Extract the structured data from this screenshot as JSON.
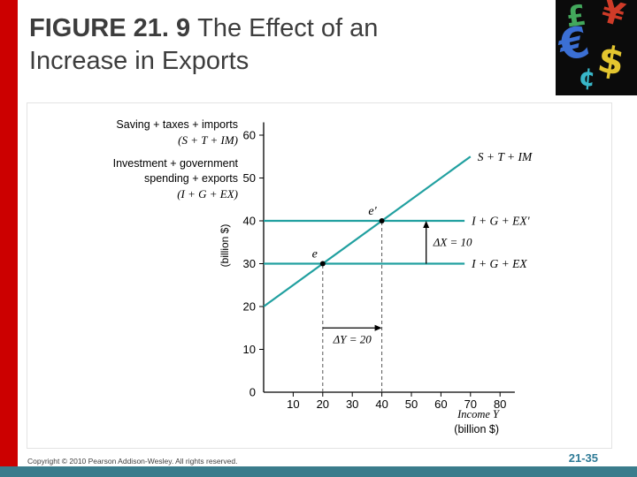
{
  "header": {
    "figure_label": "FIGURE 21. 9",
    "title_line1": "The Effect of an",
    "title_line2": "Increase in Exports"
  },
  "collage": {
    "glyphs": [
      "€",
      "$",
      "¥",
      "£",
      "¢"
    ]
  },
  "figure": {
    "y_axis_caption": [
      "Saving + taxes + imports",
      "(S + T + IM)",
      "Investment + government",
      "spending + exports",
      "(I + G + EX)"
    ],
    "x_axis_label_line1": "Income Y",
    "x_axis_label_line2": "(billion $)"
  },
  "chart_data": {
    "type": "line",
    "title": "",
    "xlabel": "Income Y (billion $)",
    "ylabel": "(billion $)",
    "xlim": [
      0,
      85
    ],
    "ylim": [
      0,
      63
    ],
    "x_ticks": [
      10,
      20,
      30,
      40,
      50,
      60,
      70,
      80
    ],
    "y_ticks": [
      0,
      10,
      20,
      30,
      40,
      50,
      60
    ],
    "grid": false,
    "series": [
      {
        "name": "S + T + IM",
        "x": [
          0,
          70
        ],
        "y": [
          20,
          55
        ],
        "color": "#21a0a0"
      },
      {
        "name": "I + G + EX'",
        "x": [
          0,
          68
        ],
        "y": [
          40,
          40
        ],
        "color": "#21a0a0"
      },
      {
        "name": "I + G + EX",
        "x": [
          0,
          68
        ],
        "y": [
          30,
          30
        ],
        "color": "#21a0a0"
      }
    ],
    "points": [
      {
        "label": "e",
        "x": 20,
        "y": 30
      },
      {
        "label": "e'",
        "x": 40,
        "y": 40
      }
    ],
    "dashed_guides": [
      {
        "x": 20,
        "y_from": 0,
        "y_to": 30
      },
      {
        "x": 40,
        "y_from": 0,
        "y_to": 40
      }
    ],
    "annotations": [
      {
        "type": "vertical-arrow",
        "label": "ΔX = 10",
        "x": 55,
        "y_from": 30,
        "y_to": 40
      },
      {
        "type": "horizontal-arrow",
        "label": "ΔY = 20",
        "y": 15,
        "x_from": 20,
        "x_to": 40
      }
    ]
  },
  "footer": {
    "copyright": "Copyright © 2010 Pearson Addison-Wesley. All rights reserved.",
    "page_number": "21-35"
  }
}
